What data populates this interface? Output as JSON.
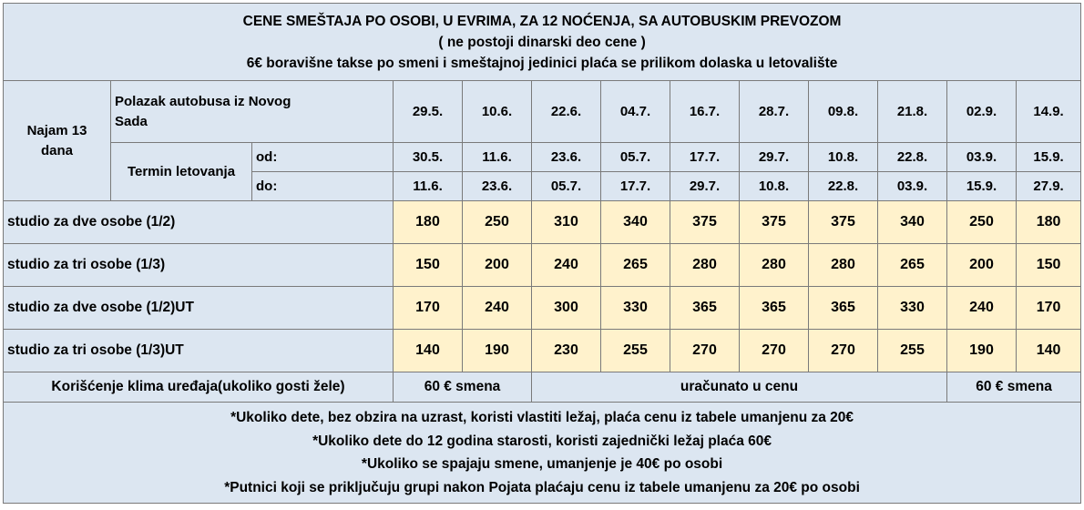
{
  "header": {
    "line1": "CENE SMEŠTAJA PO OSOBI, U EVRIMA, ZA 12 NOĆENJA, SA AUTOBUSKIM PREVOZOM",
    "line2": "( ne postoji dinarski deo cene )",
    "line3": "6€ boravišne takse po smeni i smeštajnoj jedinici plaća se prilikom dolaska u letovalište"
  },
  "labels": {
    "najam": "Najam 13 dana",
    "polazak": "Polazak autobusa iz  Novog Sada",
    "termin": "Termin letovanja",
    "od": "od:",
    "do": "do:"
  },
  "departures": [
    "29.5.",
    "10.6.",
    "22.6.",
    "04.7.",
    "16.7.",
    "28.7.",
    "09.8.",
    "21.8.",
    "02.9.",
    "14.9."
  ],
  "from_dates": [
    "30.5.",
    "11.6.",
    "23.6.",
    "05.7.",
    "17.7.",
    "29.7.",
    "10.8.",
    "22.8.",
    "03.9.",
    "15.9."
  ],
  "to_dates": [
    "11.6.",
    "23.6.",
    "05.7.",
    "17.7.",
    "29.7.",
    "10.8.",
    "22.8.",
    "03.9.",
    "15.9.",
    "27.9."
  ],
  "rows": [
    {
      "label": "studio za dve osobe (1/2)",
      "prices": [
        "180",
        "250",
        "310",
        "340",
        "375",
        "375",
        "375",
        "340",
        "250",
        "180"
      ]
    },
    {
      "label": "studio za tri osobe (1/3)",
      "prices": [
        "150",
        "200",
        "240",
        "265",
        "280",
        "280",
        "280",
        "265",
        "200",
        "150"
      ]
    },
    {
      "label": "studio za dve osobe (1/2)UT",
      "prices": [
        "170",
        "240",
        "300",
        "330",
        "365",
        "365",
        "365",
        "330",
        "240",
        "170"
      ]
    },
    {
      "label": "studio za tri osobe (1/3)UT",
      "prices": [
        "140",
        "190",
        "230",
        "255",
        "270",
        "270",
        "270",
        "255",
        "190",
        "140"
      ]
    }
  ],
  "klima": {
    "label": "Korišćenje klima uređaja(ukoliko gosti žele)",
    "first": "60 € smena",
    "middle": "uračunato u cenu",
    "last": "60 € smena"
  },
  "notes": [
    "*Ukoliko dete, bez obzira na uzrast, koristi vlastiti ležaj, plaća cenu iz tabele umanjenu za 20€",
    "*Ukoliko dete do 12 godina starosti, koristi zajednički ležaj plaća  60€",
    "*Ukoliko se spajaju smene, umanjenje je 40€ po osobi",
    "*Putnici koji se priključuju grupi nakon Pojata plaćaju cenu iz tabele umanjenu za 20€ po osobi"
  ]
}
